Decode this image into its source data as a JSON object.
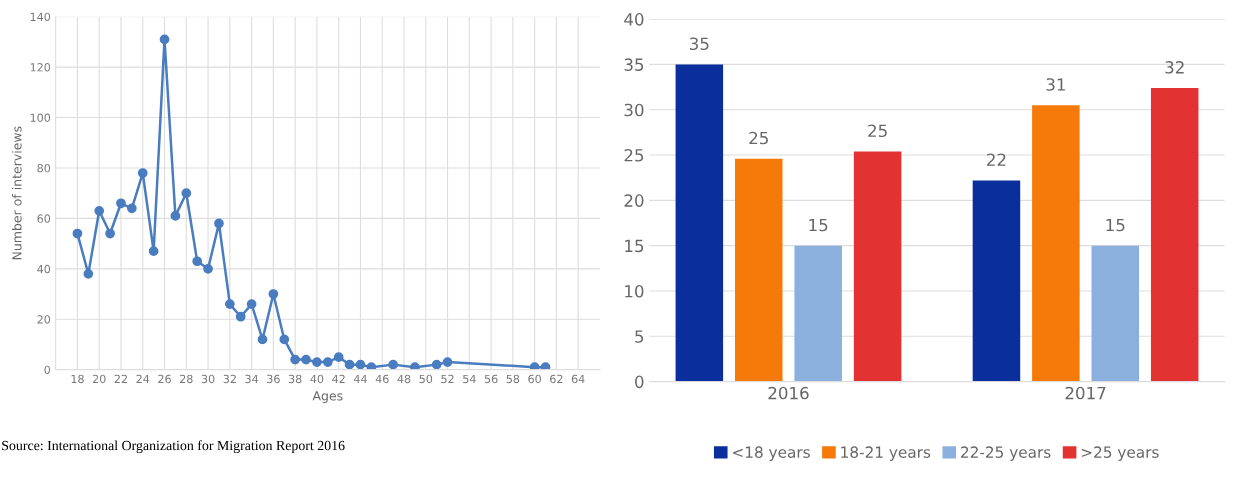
{
  "chart_data": [
    {
      "type": "line",
      "xlabel": "Ages",
      "ylabel": "Number of interviews",
      "x": [
        18,
        19,
        20,
        21,
        22,
        23,
        24,
        25,
        26,
        27,
        28,
        29,
        30,
        31,
        32,
        33,
        34,
        35,
        36,
        37,
        38,
        39,
        40,
        41,
        42,
        43,
        44,
        45,
        47,
        49,
        51,
        52,
        60,
        61
      ],
      "series": [
        {
          "color": "#4a7cc0",
          "values": [
            54,
            38,
            63,
            54,
            66,
            64,
            78,
            47,
            131,
            61,
            70,
            43,
            40,
            58,
            26,
            21,
            26,
            12,
            30,
            12,
            4,
            4,
            3,
            3,
            5,
            2,
            2,
            1,
            2,
            1,
            2,
            3,
            1,
            1
          ]
        }
      ],
      "marker": "circle",
      "xlim": [
        16,
        66
      ],
      "xticks": [
        18,
        20,
        22,
        24,
        26,
        28,
        30,
        32,
        34,
        36,
        38,
        40,
        42,
        44,
        46,
        48,
        50,
        52,
        54,
        56,
        58,
        60,
        62,
        64
      ],
      "ylim": [
        0,
        140
      ],
      "yticks": [
        0,
        20,
        40,
        60,
        80,
        100,
        120,
        140
      ],
      "grid": true,
      "annotations": [
        "Source: International Organization for Migration Report 2016"
      ]
    },
    {
      "type": "bar",
      "categories": [
        "2016",
        "2017"
      ],
      "series": [
        {
          "name": "<18 years",
          "color": "#0a2f9c",
          "values": [
            35,
            22.2
          ],
          "value_labels": [
            "35",
            "22"
          ]
        },
        {
          "name": "18-21 years",
          "color": "#f57a0a",
          "values": [
            24.6,
            30.5
          ],
          "value_labels": [
            "25",
            "31"
          ]
        },
        {
          "name": "22-25 years",
          "color": "#8cb0de",
          "values": [
            15,
            15
          ],
          "value_labels": [
            "15",
            "15"
          ]
        },
        {
          "name": ">25 years",
          "color": "#e23232",
          "values": [
            25.4,
            32.4
          ],
          "value_labels": [
            "25",
            "32"
          ]
        }
      ],
      "ylim": [
        0,
        40
      ],
      "yticks": [
        0,
        5,
        10,
        15,
        20,
        25,
        30,
        35,
        40
      ],
      "grid": "y",
      "legend": "bottom"
    }
  ]
}
